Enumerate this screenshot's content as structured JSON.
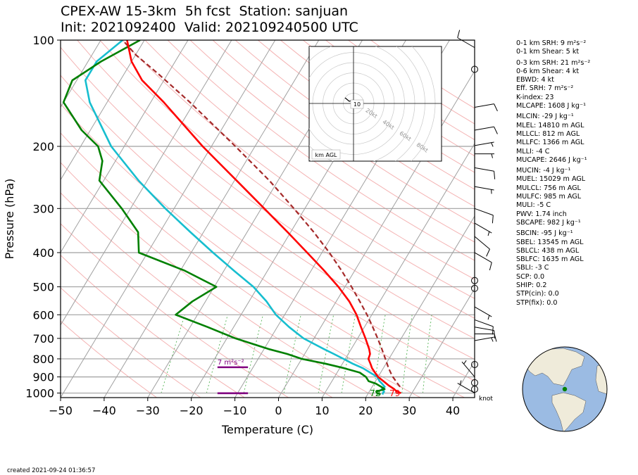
{
  "title": {
    "line1": "CPEX-AW 15-3km  5h fcst  Station: sanjuan",
    "line2": "Init: 2021092400  Valid: 202109240500 UTC"
  },
  "created": "created 2021-09-24 01:36:57",
  "colors": {
    "temperature": "#ff0000",
    "dewpoint": "#008000",
    "wetbulb": "#17becf",
    "parcel": "#a52a2a",
    "srh_bar": "#800080",
    "isobar": "#a0a0a0",
    "isotherm": "#a0a0a0",
    "dry_adiabat": "#f4b3b3",
    "mixing_ratio": "#66bb66"
  },
  "indices": [
    {
      "text": "0-1 km SRH: 9 m²s⁻²"
    },
    {
      "text": "0-1 km Shear: 5 kt"
    },
    {
      "text": "0-3 km SRH: 21 m²s⁻²",
      "gap": true
    },
    {
      "text": "0-6 km Shear: 4 kt"
    },
    {
      "text": "EBWD: 4 kt"
    },
    {
      "text": "Eff. SRH: 7 m²s⁻²"
    },
    {
      "text": "K-index: 23"
    },
    {
      "text": "MLCAPE: 1608 J kg⁻¹"
    },
    {
      "text": "MLCIN: -29 J kg⁻¹",
      "gap": true
    },
    {
      "text": "MLEL: 14810 m AGL"
    },
    {
      "text": "MLLCL: 812 m AGL"
    },
    {
      "text": "MLLFC: 1366 m AGL"
    },
    {
      "text": "MLLI: -4 C"
    },
    {
      "text": "MUCAPE: 2646 J kg⁻¹"
    },
    {
      "text": "MUCIN: -4 J kg⁻¹",
      "gap": true
    },
    {
      "text": "MUEL: 15029 m AGL"
    },
    {
      "text": "MULCL: 756 m AGL"
    },
    {
      "text": "MULFC: 985 m AGL"
    },
    {
      "text": "MULI: -5 C"
    },
    {
      "text": "PWV: 1.74 inch"
    },
    {
      "text": "SBCAPE: 982 J kg⁻¹"
    },
    {
      "text": "SBCIN: -95 J kg⁻¹",
      "gap": true
    },
    {
      "text": "SBEL: 13545 m AGL"
    },
    {
      "text": "SBLCL: 438 m AGL"
    },
    {
      "text": "SBLFC: 1635 m AGL"
    },
    {
      "text": "SBLI: -3 C"
    },
    {
      "text": "SCP: 0.0"
    },
    {
      "text": "SHIP: 0.2"
    },
    {
      "text": "STP(cin): 0.0"
    },
    {
      "text": "STP(fix): 0.0"
    }
  ],
  "chart_data": {
    "type": "skew-t",
    "xlabel": "Temperature (C)",
    "ylabel": "Pressure (hPa)",
    "xlim": [
      -50,
      45
    ],
    "ylim": [
      1030,
      100
    ],
    "x_ticks": [
      -50,
      -40,
      -30,
      -20,
      -10,
      0,
      10,
      20,
      30,
      40
    ],
    "y_ticks": [
      100,
      200,
      300,
      400,
      500,
      600,
      700,
      800,
      900,
      1000
    ],
    "grid": true,
    "series": [
      {
        "key": "temperature",
        "points": [
          [
            1000,
            27.5
          ],
          [
            990,
            26.3
          ],
          [
            975,
            25.4
          ],
          [
            950,
            23.5
          ],
          [
            925,
            21.8
          ],
          [
            900,
            20.0
          ],
          [
            875,
            18.7
          ],
          [
            850,
            17.4
          ],
          [
            825,
            16.4
          ],
          [
            800,
            15.3
          ],
          [
            775,
            15.0
          ],
          [
            750,
            14.1
          ],
          [
            700,
            11.8
          ],
          [
            650,
            9.2
          ],
          [
            600,
            6.5
          ],
          [
            550,
            3.0
          ],
          [
            500,
            -1.5
          ],
          [
            450,
            -7.0
          ],
          [
            400,
            -13.4
          ],
          [
            350,
            -20.7
          ],
          [
            300,
            -29.3
          ],
          [
            250,
            -39.5
          ],
          [
            200,
            -52.0
          ],
          [
            150,
            -67.0
          ],
          [
            130,
            -75.0
          ],
          [
            115,
            -80.0
          ],
          [
            100,
            -84.0
          ]
        ]
      },
      {
        "key": "wetbulb",
        "points": [
          [
            1010,
            23.5
          ],
          [
            1000,
            23.3
          ],
          [
            990,
            23.4
          ],
          [
            975,
            22.5
          ],
          [
            960,
            22.9
          ],
          [
            940,
            21.8
          ],
          [
            925,
            20.9
          ],
          [
            900,
            19.8
          ],
          [
            875,
            17.6
          ],
          [
            850,
            15.3
          ],
          [
            825,
            12.3
          ],
          [
            800,
            9.6
          ],
          [
            775,
            6.7
          ],
          [
            750,
            3.7
          ],
          [
            700,
            -2.4
          ],
          [
            650,
            -7.3
          ],
          [
            600,
            -12.0
          ],
          [
            550,
            -16.0
          ],
          [
            500,
            -21.0
          ],
          [
            450,
            -27.7
          ],
          [
            400,
            -35.0
          ],
          [
            350,
            -43.0
          ],
          [
            300,
            -52.0
          ],
          [
            250,
            -62.0
          ],
          [
            200,
            -73.0
          ],
          [
            150,
            -84.0
          ],
          [
            130,
            -88.0
          ],
          [
            115,
            -88.0
          ],
          [
            100,
            -85.0
          ]
        ]
      },
      {
        "key": "dewpoint",
        "points": [
          [
            1010,
            23.0
          ],
          [
            1000,
            22.0
          ],
          [
            990,
            21.6
          ],
          [
            975,
            23.2
          ],
          [
            960,
            22.1
          ],
          [
            940,
            20.4
          ],
          [
            925,
            18.4
          ],
          [
            900,
            17.2
          ],
          [
            875,
            15.2
          ],
          [
            850,
            11.0
          ],
          [
            825,
            6.0
          ],
          [
            800,
            0.0
          ],
          [
            775,
            -4.0
          ],
          [
            750,
            -9.0
          ],
          [
            700,
            -18.0
          ],
          [
            650,
            -26.0
          ],
          [
            600,
            -35.0
          ],
          [
            550,
            -33.0
          ],
          [
            500,
            -29.5
          ],
          [
            450,
            -39.0
          ],
          [
            400,
            -52.0
          ],
          [
            350,
            -55.0
          ],
          [
            300,
            -62.0
          ],
          [
            250,
            -71.0
          ],
          [
            220,
            -73.0
          ],
          [
            200,
            -76.0
          ],
          [
            180,
            -82.0
          ],
          [
            150,
            -90.0
          ],
          [
            130,
            -91.0
          ],
          [
            115,
            -87.0
          ],
          [
            100,
            -81.0
          ]
        ]
      },
      {
        "key": "parcel",
        "dashed": true,
        "points": [
          [
            960,
            26.4
          ],
          [
            940,
            25.4
          ],
          [
            920,
            24.4
          ],
          [
            900,
            23.4
          ],
          [
            880,
            22.5
          ],
          [
            850,
            21.2
          ],
          [
            800,
            19.2
          ],
          [
            750,
            17.0
          ],
          [
            700,
            14.6
          ],
          [
            650,
            11.9
          ],
          [
            600,
            8.9
          ],
          [
            550,
            5.4
          ],
          [
            500,
            1.5
          ],
          [
            450,
            -3.0
          ],
          [
            400,
            -8.3
          ],
          [
            350,
            -14.7
          ],
          [
            300,
            -22.5
          ],
          [
            250,
            -32.0
          ],
          [
            200,
            -44.5
          ],
          [
            150,
            -61.0
          ],
          [
            125,
            -72.0
          ],
          [
            110,
            -80.0
          ],
          [
            100,
            -85.0
          ]
        ]
      }
    ],
    "surface_labels": [
      {
        "text": "72",
        "temp_c": 22.0,
        "pressure": 1021,
        "color": "#008000"
      },
      {
        "text": "79",
        "temp_c": 26.5,
        "pressure": 1021,
        "color": "#ff0000"
      }
    ],
    "srh": {
      "label": "7 m²s⁻²",
      "top_pressure": 845,
      "bottom_pressure": 1001,
      "temp_start": -14.0,
      "temp_end": -7.0
    },
    "wind_barbs": {
      "unit_label": "knot",
      "levels": [
        {
          "p": 105,
          "speed": 10,
          "dir": 300
        },
        {
          "p": 121,
          "speed": 0,
          "dir": 0
        },
        {
          "p": 155,
          "speed": 10,
          "dir": 80
        },
        {
          "p": 180,
          "speed": 10,
          "dir": 80
        },
        {
          "p": 199,
          "speed": 5,
          "dir": 80
        },
        {
          "p": 210,
          "speed": 5,
          "dir": 90
        },
        {
          "p": 230,
          "speed": 10,
          "dir": 100
        },
        {
          "p": 260,
          "speed": 5,
          "dir": 100
        },
        {
          "p": 300,
          "speed": 10,
          "dir": 110
        },
        {
          "p": 330,
          "speed": 5,
          "dir": 120
        },
        {
          "p": 360,
          "speed": 10,
          "dir": 130
        },
        {
          "p": 400,
          "speed": 10,
          "dir": 120
        },
        {
          "p": 480,
          "speed": 0,
          "dir": 0
        },
        {
          "p": 505,
          "speed": 0,
          "dir": 0
        },
        {
          "p": 570,
          "speed": 5,
          "dir": 120
        },
        {
          "p": 620,
          "speed": 10,
          "dir": 110
        },
        {
          "p": 650,
          "speed": 10,
          "dir": 100
        },
        {
          "p": 680,
          "speed": 10,
          "dir": 90
        },
        {
          "p": 710,
          "speed": 5,
          "dir": 80
        },
        {
          "p": 830,
          "speed": 0,
          "dir": 0
        },
        {
          "p": 900,
          "speed": 5,
          "dir": 320
        },
        {
          "p": 935,
          "speed": 0,
          "dir": 0
        },
        {
          "p": 975,
          "speed": 0,
          "dir": 0
        },
        {
          "p": 1000,
          "speed": 5,
          "dir": 300
        }
      ]
    },
    "hodograph": {
      "ring_labels": [
        "20kt",
        "40kt",
        "60kt",
        "80kt"
      ],
      "center_label": "10",
      "legend": "km AGL"
    },
    "globe": {
      "station_lat": 18.4,
      "station_lon": -66.1,
      "ocean_color": "#9bbbe3",
      "land_color": "#efebda"
    }
  }
}
